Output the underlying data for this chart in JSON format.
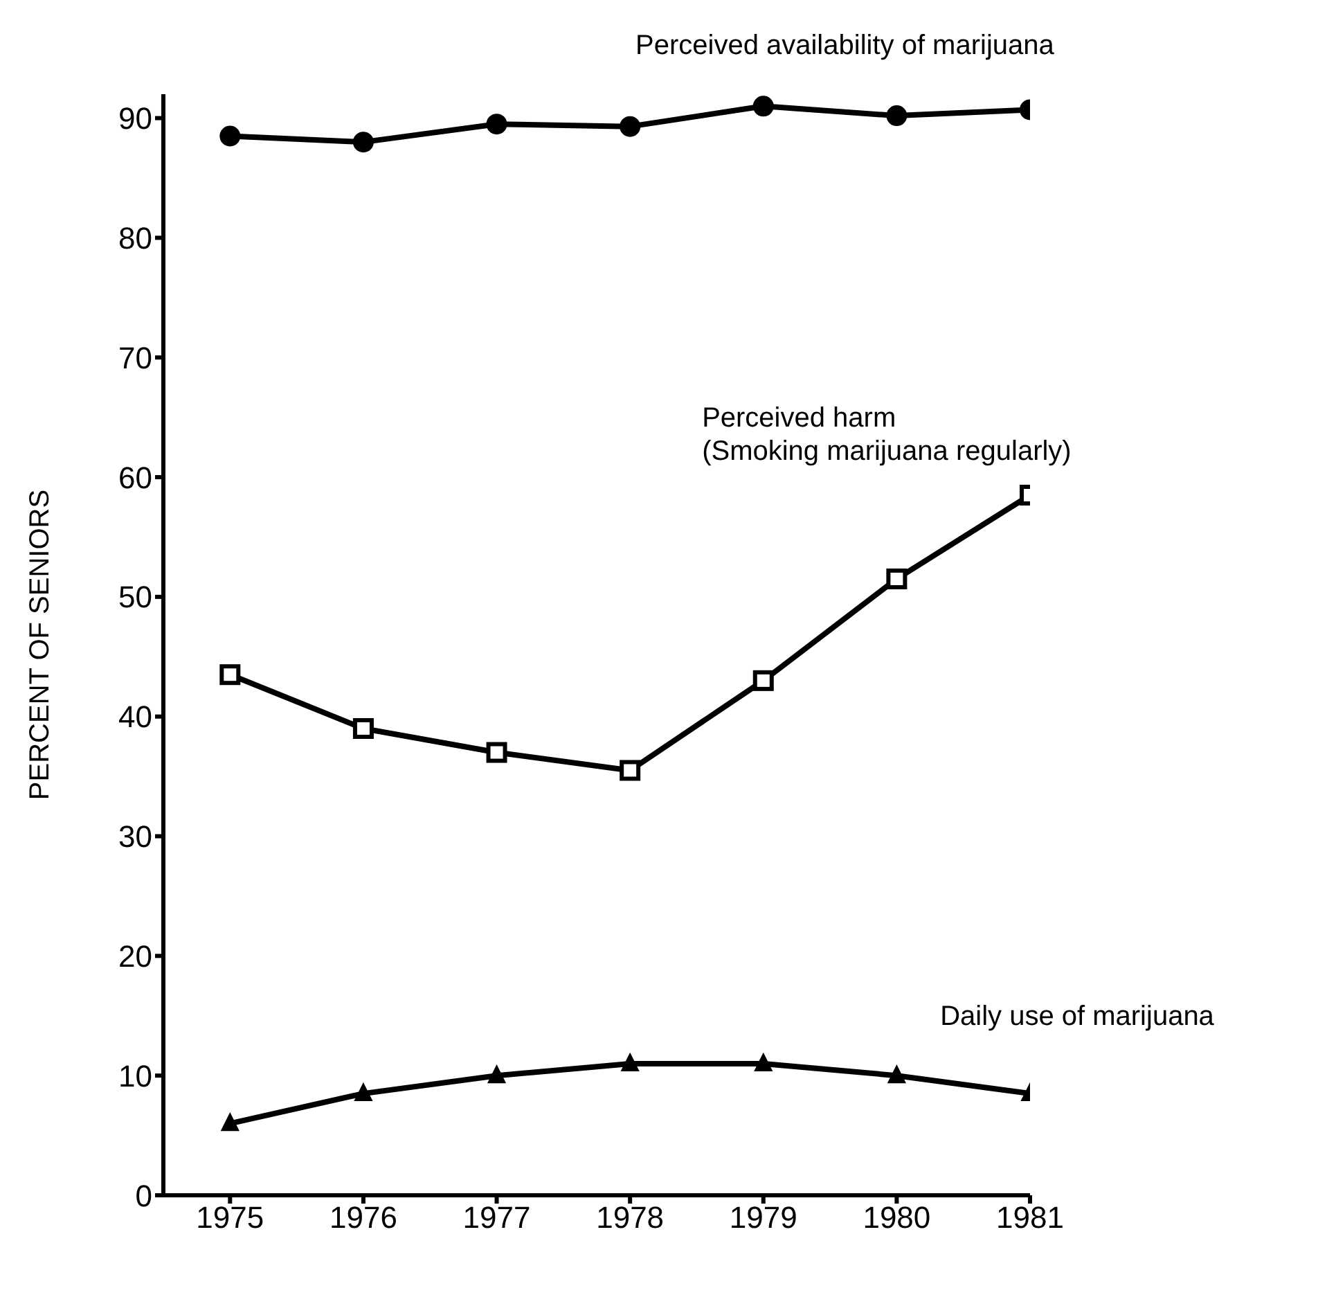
{
  "chart_data": {
    "type": "line",
    "ylabel": "PERCENT OF SENIORS",
    "x": [
      1975,
      1976,
      1977,
      1978,
      1979,
      1980,
      1981
    ],
    "xlim": [
      1974.5,
      1981
    ],
    "xticks": [
      1975,
      1976,
      1977,
      1978,
      1979,
      1980,
      1981
    ],
    "ylim": [
      0,
      92
    ],
    "yticks": [
      0,
      10,
      20,
      30,
      40,
      50,
      60,
      70,
      80,
      90
    ],
    "grid": false,
    "legend": false,
    "series": [
      {
        "name": "Perceived availability of marijuana",
        "color": "#000000",
        "marker": "circle",
        "values": [
          88.5,
          88,
          89.5,
          89.3,
          91,
          90.2,
          90.7
        ]
      },
      {
        "name": "Perceived harm (Smoking marijuana regularly)",
        "color": "#000000",
        "marker": "square",
        "values": [
          43.5,
          39,
          37,
          35.5,
          43,
          51.5,
          58.5
        ]
      },
      {
        "name": "Daily use of marijuana",
        "color": "#000000",
        "marker": "triangle",
        "values": [
          6,
          8.5,
          10,
          11,
          11,
          10,
          8.5
        ]
      }
    ]
  }
}
